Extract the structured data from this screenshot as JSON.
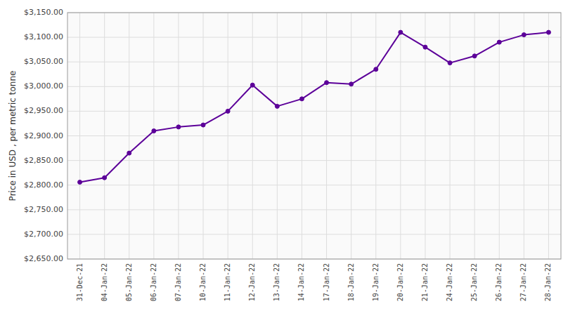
{
  "chart_data": {
    "type": "line",
    "y_label": "Price in USD , per metric tonne",
    "categories": [
      "31-Dec-21",
      "04-Jan-22",
      "05-Jan-22",
      "06-Jan-22",
      "07-Jan-22",
      "10-Jan-22",
      "11-Jan-22",
      "12-Jan-22",
      "13-Jan-22",
      "14-Jan-22",
      "17-Jan-22",
      "18-Jan-22",
      "19-Jan-22",
      "20-Jan-22",
      "21-Jan-22",
      "24-Jan-22",
      "25-Jan-22",
      "26-Jan-22",
      "27-Jan-22",
      "28-Jan-22"
    ],
    "values": [
      2806,
      2815,
      2865,
      2910,
      2918,
      2922,
      2950,
      3003,
      2960,
      2975,
      3008,
      3005,
      3035,
      3110,
      3080,
      3048,
      3062,
      3090,
      3105,
      3110
    ],
    "color": "#5c0099",
    "marker": "circle",
    "ylim": [
      2650,
      3150
    ],
    "yticks": [
      {
        "value": 2650,
        "label": "$2,650.00"
      },
      {
        "value": 2700,
        "label": "$2,700.00"
      },
      {
        "value": 2750,
        "label": "$2,750.00"
      },
      {
        "value": 2800,
        "label": "$2,800.00"
      },
      {
        "value": 2850,
        "label": "$2,850.00"
      },
      {
        "value": 2900,
        "label": "$2,900.00"
      },
      {
        "value": 2950,
        "label": "$2,950.00"
      },
      {
        "value": 3000,
        "label": "$3,000.00"
      },
      {
        "value": 3050,
        "label": "$3,050.00"
      },
      {
        "value": 3100,
        "label": "$3,100.00"
      },
      {
        "value": 3150,
        "label": "$3,150.00"
      }
    ],
    "grid": true
  }
}
